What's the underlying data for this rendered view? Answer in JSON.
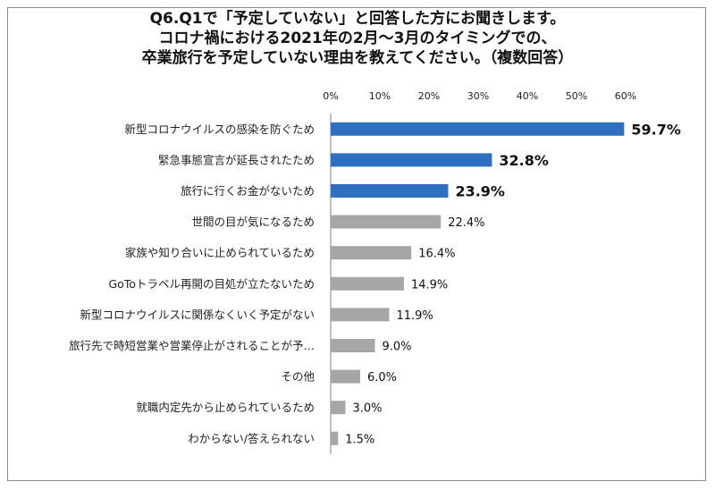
{
  "title_lines": [
    "Q6.Q1で「予定していない」と回答した方にお聞きします。",
    "コロナ禍における2021年の2月～3月のタイミングでの、",
    "卒業旅行を予定していない理由を教えてください。（複数回答）"
  ],
  "chart_data": {
    "type": "bar",
    "orientation": "horizontal",
    "xlim": [
      0,
      60
    ],
    "ticks": [
      "0%",
      "10%",
      "20%",
      "30%",
      "40%",
      "50%",
      "60%"
    ],
    "tick_values": [
      0,
      10,
      20,
      30,
      40,
      50,
      60
    ],
    "categories": [
      "新型コロナウイルスの感染を防ぐため",
      "緊急事態宣言が延長されたため",
      "旅行に行くお金がないため",
      "世間の目が気になるため",
      "家族や知り合いに止められているため",
      "GoToトラベル再開の目処が立たないため",
      "新型コロナウイルスに関係なくいく予定がない",
      "旅行先で時短営業や営業停止がされることが予…",
      "その他",
      "就職内定先から止められているため",
      "わからない/答えられない"
    ],
    "values": [
      59.7,
      32.8,
      23.9,
      22.4,
      16.4,
      14.9,
      11.9,
      9.0,
      6.0,
      3.0,
      1.5
    ],
    "labels": [
      "59.7%",
      "32.8%",
      "23.9%",
      "22.4%",
      "16.4%",
      "14.9%",
      "11.9%",
      "9.0%",
      "6.0%",
      "3.0%",
      "1.5%"
    ],
    "highlight_count": 3,
    "colors": {
      "highlight": "#2e6fbf",
      "normal": "#a6a6a6",
      "axis": "#808080"
    },
    "grid": false
  }
}
